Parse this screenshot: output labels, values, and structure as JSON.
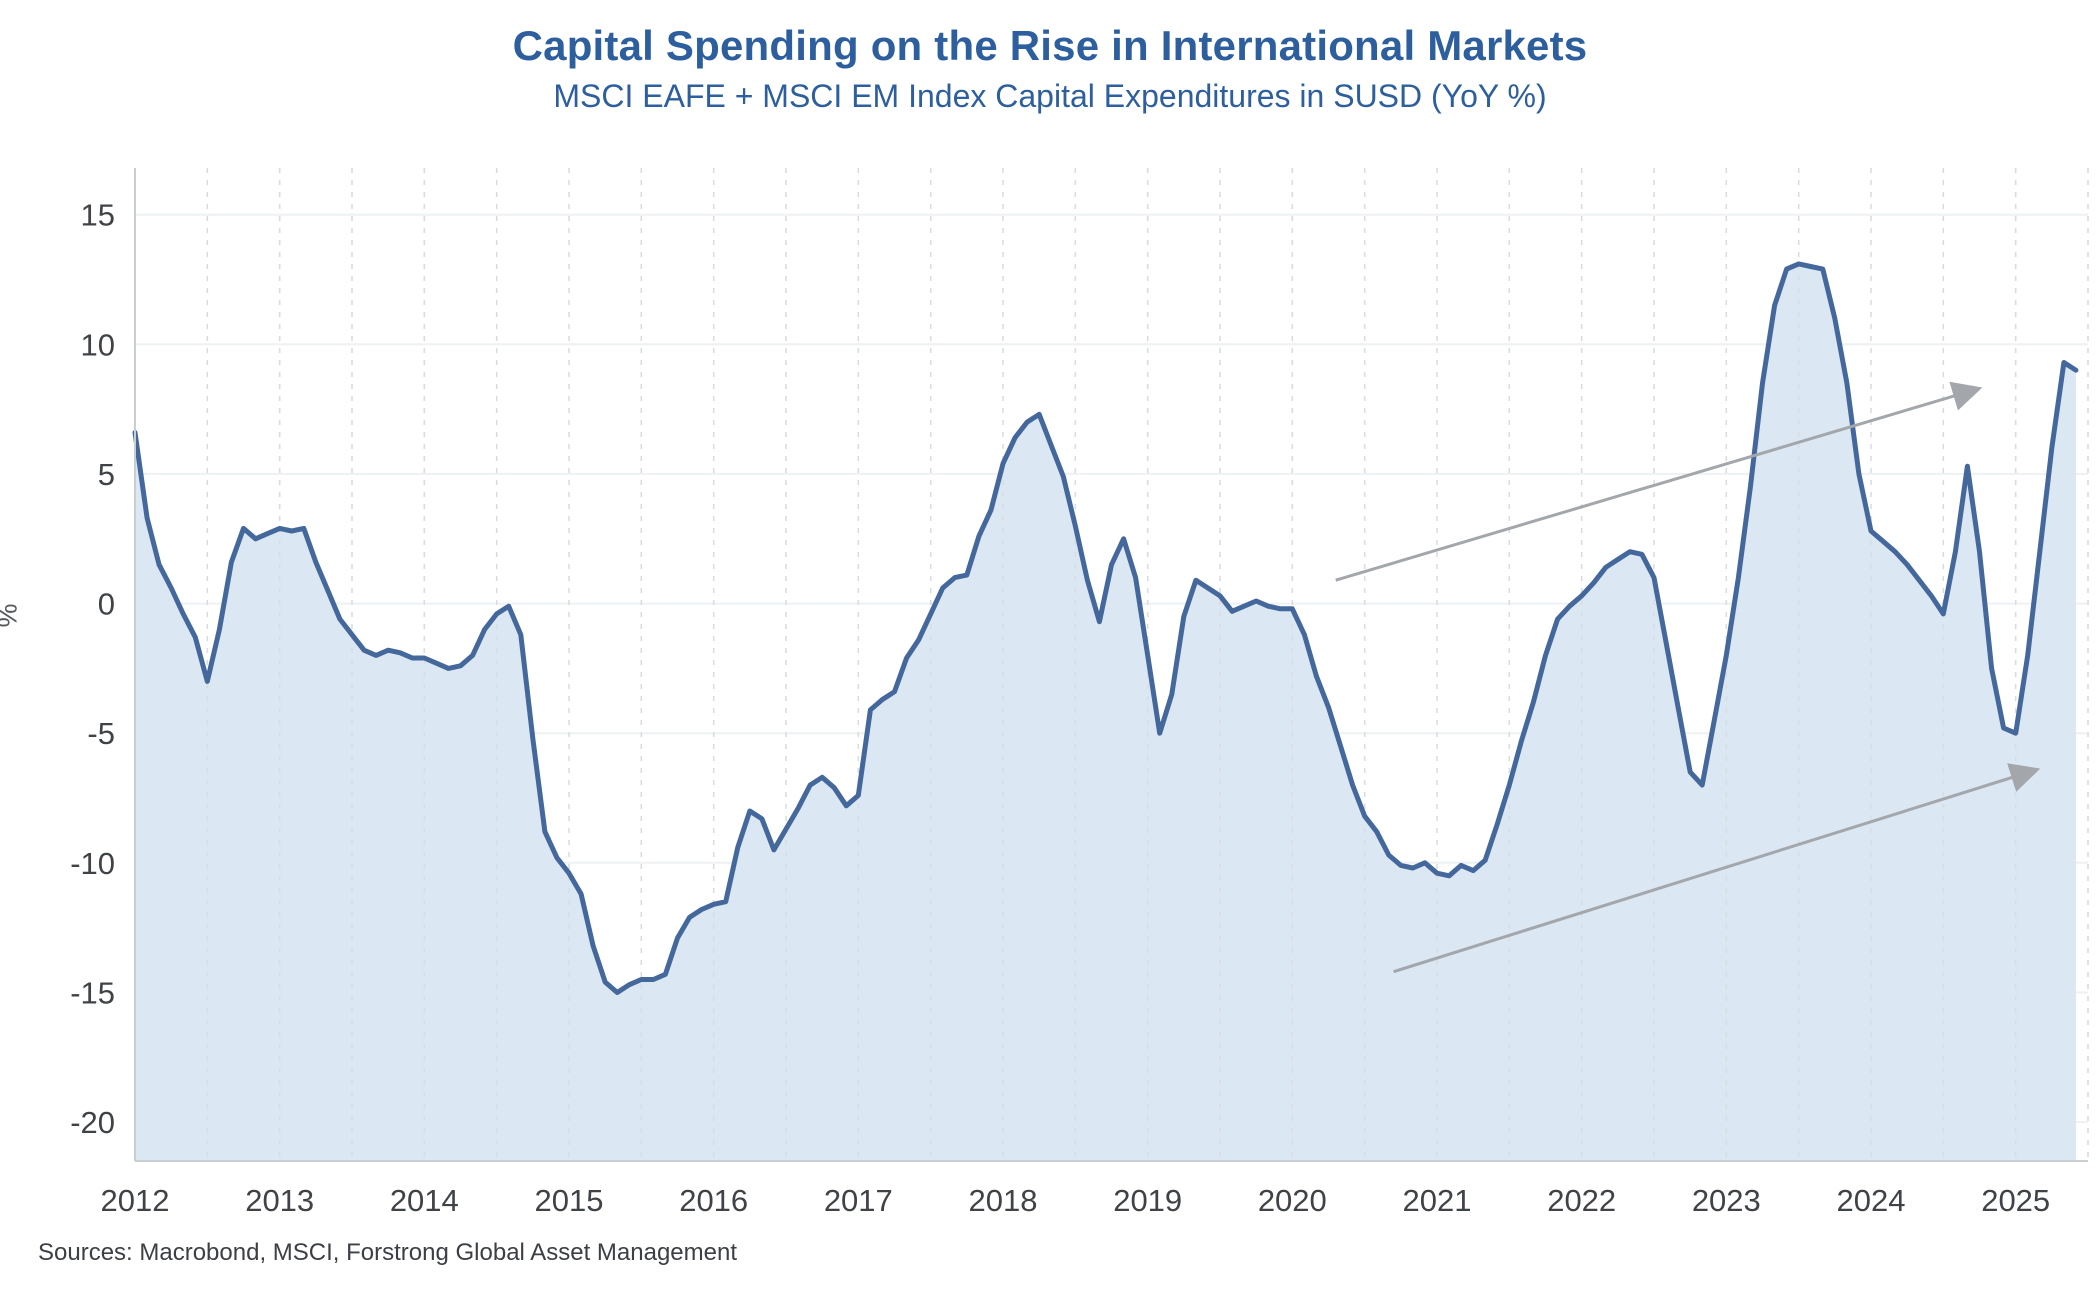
{
  "header": {
    "title": "Capital Spending on the Rise in International Markets",
    "subtitle": "MSCI EAFE + MSCI EM Index Capital Expenditures in SUSD (YoY %)"
  },
  "footer": {
    "sources": "Sources: Macrobond, MSCI, Forstrong Global Asset Management"
  },
  "chart_data": {
    "type": "area",
    "title": "Capital Spending on the Rise in International Markets",
    "subtitle": "MSCI EAFE + MSCI EM Index Capital Expenditures in SUSD (YoY %)",
    "xlabel": "",
    "ylabel": "%",
    "x_start": 2012.0,
    "x_step_months": 1,
    "xlim": [
      2012.0,
      2025.5
    ],
    "ylim": [
      -21.5,
      16.8
    ],
    "xticks": [
      2012,
      2013,
      2014,
      2015,
      2016,
      2017,
      2018,
      2019,
      2020,
      2021,
      2022,
      2023,
      2024,
      2025
    ],
    "yticks": [
      15,
      10,
      5,
      0,
      -5,
      -10,
      -15,
      -20
    ],
    "grid": {
      "x_start": 2012.5,
      "x_step": 0.5,
      "vertical_dashed": true,
      "horizontal": true
    },
    "legend": "none",
    "series": [
      {
        "name": "MSCI EAFE + MSCI EM Capital Expenditures YoY %",
        "frequency": "monthly",
        "values": [
          6.6,
          3.3,
          1.5,
          0.6,
          -0.4,
          -1.3,
          -3.0,
          -1.0,
          1.6,
          2.9,
          2.5,
          2.7,
          2.9,
          2.8,
          2.9,
          1.6,
          0.5,
          -0.6,
          -1.2,
          -1.8,
          -2.0,
          -1.8,
          -1.9,
          -2.1,
          -2.1,
          -2.3,
          -2.5,
          -2.4,
          -2.0,
          -1.0,
          -0.4,
          -0.1,
          -1.2,
          -5.2,
          -8.8,
          -9.8,
          -10.4,
          -11.2,
          -13.2,
          -14.6,
          -15.0,
          -14.7,
          -14.5,
          -14.5,
          -14.3,
          -12.9,
          -12.1,
          -11.8,
          -11.6,
          -11.5,
          -9.4,
          -8.0,
          -8.3,
          -9.5,
          -8.7,
          -7.9,
          -7.0,
          -6.7,
          -7.1,
          -7.8,
          -7.4,
          -4.1,
          -3.7,
          -3.4,
          -2.1,
          -1.4,
          -0.4,
          0.6,
          1.0,
          1.1,
          2.6,
          3.6,
          5.4,
          6.4,
          7.0,
          7.3,
          6.1,
          4.9,
          3.0,
          0.9,
          -0.7,
          1.5,
          2.5,
          1.0,
          -2.0,
          -5.0,
          -3.5,
          -0.5,
          0.9,
          0.6,
          0.3,
          -0.3,
          -0.1,
          0.1,
          -0.1,
          -0.2,
          -0.2,
          -1.2,
          -2.8,
          -4.0,
          -5.5,
          -7.0,
          -8.2,
          -8.8,
          -9.7,
          -10.1,
          -10.2,
          -10.0,
          -10.4,
          -10.5,
          -10.1,
          -10.3,
          -9.9,
          -8.5,
          -7.0,
          -5.3,
          -3.8,
          -2.0,
          -0.6,
          -0.1,
          0.3,
          0.8,
          1.4,
          1.7,
          2.0,
          1.9,
          1.0,
          -1.5,
          -4.0,
          -6.5,
          -7.0,
          -4.5,
          -2.0,
          1.0,
          4.5,
          8.5,
          11.5,
          12.9,
          13.1,
          13.0,
          12.9,
          11.0,
          8.5,
          5.0,
          2.8,
          2.4,
          2.0,
          1.5,
          0.9,
          0.3,
          -0.4,
          2.0,
          5.3,
          2.0,
          -2.5,
          -4.8,
          -5.0,
          -2.0,
          2.0,
          6.0,
          9.3,
          9.0
        ]
      }
    ],
    "annotations": {
      "arrows": [
        {
          "x1": 2020.3,
          "y1": 0.9,
          "x2": 2024.75,
          "y2": 8.3
        },
        {
          "x1": 2020.7,
          "y1": -14.2,
          "x2": 2025.15,
          "y2": -6.4
        }
      ]
    },
    "colors": {
      "title": "#2d5f9f",
      "line": "#45689c",
      "area": "#dbe7f3",
      "grid_v": "#d9dde2",
      "grid_h": "#eef1f4",
      "spine": "#c9ced3",
      "tick": "#3f4347",
      "arrow": "#a3a7ab"
    }
  }
}
